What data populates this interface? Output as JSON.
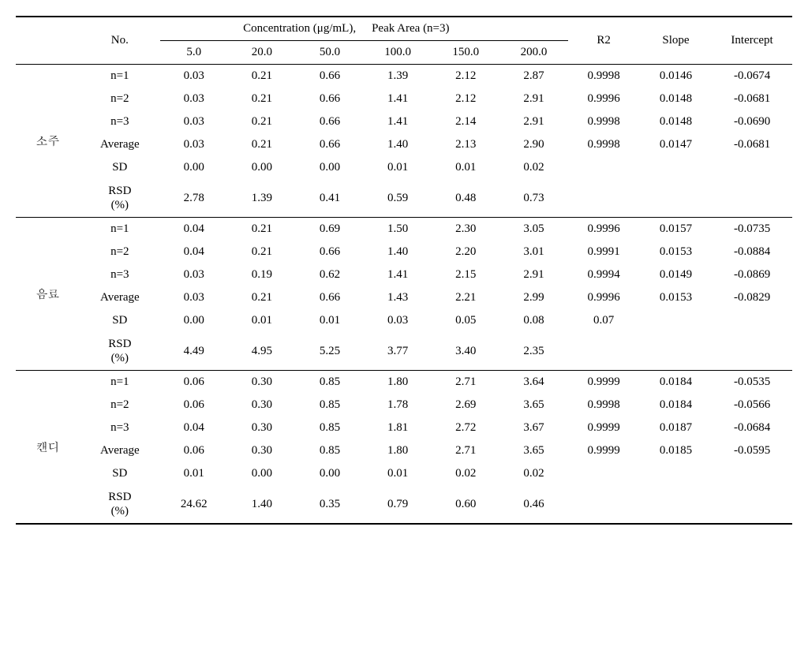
{
  "headers": {
    "no": "No.",
    "conc_label": "Concentration (μg/mL),",
    "peak_label": "Peak Area (n=3)",
    "r2": "R2",
    "slope": "Slope",
    "intercept": "Intercept",
    "c1": "5.0",
    "c2": "20.0",
    "c3": "50.0",
    "c4": "100.0",
    "c5": "150.0",
    "c6": "200.0"
  },
  "row_labels": {
    "n1": "n=1",
    "n2": "n=2",
    "n3": "n=3",
    "avg": "Average",
    "sd": "SD",
    "rsd1": "RSD",
    "rsd2": "(%)"
  },
  "groups": [
    {
      "name": "소주",
      "rows": [
        {
          "c1": "0.03",
          "c2": "0.21",
          "c3": "0.66",
          "c4": "1.39",
          "c5": "2.12",
          "c6": "2.87",
          "r2": "0.9998",
          "slope": "0.0146",
          "intercept": "-0.0674"
        },
        {
          "c1": "0.03",
          "c2": "0.21",
          "c3": "0.66",
          "c4": "1.41",
          "c5": "2.12",
          "c6": "2.91",
          "r2": "0.9996",
          "slope": "0.0148",
          "intercept": "-0.0681"
        },
        {
          "c1": "0.03",
          "c2": "0.21",
          "c3": "0.66",
          "c4": "1.41",
          "c5": "2.14",
          "c6": "2.91",
          "r2": "0.9998",
          "slope": "0.0148",
          "intercept": "-0.0690"
        },
        {
          "c1": "0.03",
          "c2": "0.21",
          "c3": "0.66",
          "c4": "1.40",
          "c5": "2.13",
          "c6": "2.90",
          "r2": "0.9998",
          "slope": "0.0147",
          "intercept": "-0.0681"
        },
        {
          "c1": "0.00",
          "c2": "0.00",
          "c3": "0.00",
          "c4": "0.01",
          "c5": "0.01",
          "c6": "0.02",
          "r2": "",
          "slope": "",
          "intercept": ""
        },
        {
          "c1": "2.78",
          "c2": "1.39",
          "c3": "0.41",
          "c4": "0.59",
          "c5": "0.48",
          "c6": "0.73",
          "r2": "",
          "slope": "",
          "intercept": ""
        }
      ]
    },
    {
      "name": "음료",
      "rows": [
        {
          "c1": "0.04",
          "c2": "0.21",
          "c3": "0.69",
          "c4": "1.50",
          "c5": "2.30",
          "c6": "3.05",
          "r2": "0.9996",
          "slope": "0.0157",
          "intercept": "-0.0735"
        },
        {
          "c1": "0.04",
          "c2": "0.21",
          "c3": "0.66",
          "c4": "1.40",
          "c5": "2.20",
          "c6": "3.01",
          "r2": "0.9991",
          "slope": "0.0153",
          "intercept": "-0.0884"
        },
        {
          "c1": "0.03",
          "c2": "0.19",
          "c3": "0.62",
          "c4": "1.41",
          "c5": "2.15",
          "c6": "2.91",
          "r2": "0.9994",
          "slope": "0.0149",
          "intercept": "-0.0869"
        },
        {
          "c1": "0.03",
          "c2": "0.21",
          "c3": "0.66",
          "c4": "1.43",
          "c5": "2.21",
          "c6": "2.99",
          "r2": "0.9996",
          "slope": "0.0153",
          "intercept": "-0.0829"
        },
        {
          "c1": "0.00",
          "c2": "0.01",
          "c3": "0.01",
          "c4": "0.03",
          "c5": "0.05",
          "c6": "0.08",
          "r2": "0.07",
          "slope": "",
          "intercept": ""
        },
        {
          "c1": "4.49",
          "c2": "4.95",
          "c3": "5.25",
          "c4": "3.77",
          "c5": "3.40",
          "c6": "2.35",
          "r2": "",
          "slope": "",
          "intercept": ""
        }
      ]
    },
    {
      "name": "캔디",
      "rows": [
        {
          "c1": "0.06",
          "c2": "0.30",
          "c3": "0.85",
          "c4": "1.80",
          "c5": "2.71",
          "c6": "3.64",
          "r2": "0.9999",
          "slope": "0.0184",
          "intercept": "-0.0535"
        },
        {
          "c1": "0.06",
          "c2": "0.30",
          "c3": "0.85",
          "c4": "1.78",
          "c5": "2.69",
          "c6": "3.65",
          "r2": "0.9998",
          "slope": "0.0184",
          "intercept": "-0.0566"
        },
        {
          "c1": "0.04",
          "c2": "0.30",
          "c3": "0.85",
          "c4": "1.81",
          "c5": "2.72",
          "c6": "3.67",
          "r2": "0.9999",
          "slope": "0.0187",
          "intercept": "-0.0684"
        },
        {
          "c1": "0.06",
          "c2": "0.30",
          "c3": "0.85",
          "c4": "1.80",
          "c5": "2.71",
          "c6": "3.65",
          "r2": "0.9999",
          "slope": "0.0185",
          "intercept": "-0.0595"
        },
        {
          "c1": "0.01",
          "c2": "0.00",
          "c3": "0.00",
          "c4": "0.01",
          "c5": "0.02",
          "c6": "0.02",
          "r2": "",
          "slope": "",
          "intercept": ""
        },
        {
          "c1": "24.62",
          "c2": "1.40",
          "c3": "0.35",
          "c4": "0.79",
          "c5": "0.60",
          "c6": "0.46",
          "r2": "",
          "slope": "",
          "intercept": ""
        }
      ]
    }
  ]
}
